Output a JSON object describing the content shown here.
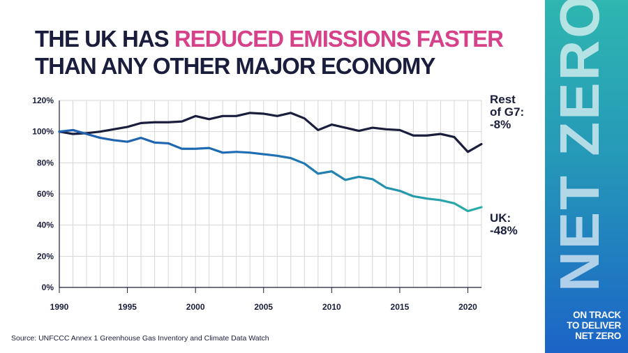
{
  "title": {
    "part1": "THE UK HAS ",
    "highlight": "REDUCED EMISSIONS FASTER",
    "line2": "THAN ANY OTHER MAJOR ECONOMY"
  },
  "source": "Source: UNFCCC Annex 1 Greenhouse Gas Inventory and Climate Data Watch",
  "sidebar": {
    "word": "NET ZERO",
    "tag_lines": [
      "ON TRACK",
      "TO DELIVER",
      "NET ZERO"
    ]
  },
  "colors": {
    "title": "#1a1d3b",
    "highlight": "#d6418a",
    "rest_g7": "#1a1d3b",
    "uk": "#2a9fa5",
    "uk_early": "#1f5fb0",
    "grid": "#d6d6d6",
    "sidebar_top": "#2fb6b0",
    "sidebar_bottom": "#1c64c7"
  },
  "chart_data": {
    "type": "line",
    "title": "",
    "xlabel": "",
    "ylabel": "",
    "xlim": [
      1990,
      2021
    ],
    "ylim": [
      0,
      120
    ],
    "x_ticks": [
      "1990",
      "1995",
      "2000",
      "2005",
      "2010",
      "2015",
      "2020"
    ],
    "y_ticks": [
      "0%",
      "20%",
      "40%",
      "60%",
      "80%",
      "100%",
      "120%"
    ],
    "grid": true,
    "x": [
      1990,
      1991,
      1992,
      1993,
      1994,
      1995,
      1996,
      1997,
      1998,
      1999,
      2000,
      2001,
      2002,
      2003,
      2004,
      2005,
      2006,
      2007,
      2008,
      2009,
      2010,
      2011,
      2012,
      2013,
      2014,
      2015,
      2016,
      2017,
      2018,
      2019,
      2020,
      2021
    ],
    "series": [
      {
        "name": "Rest of G7",
        "end_label": [
          "Rest",
          "of G7:",
          "-8%"
        ],
        "values": [
          100,
          98.5,
          99,
          100,
          101.5,
          103,
          105.5,
          106,
          106,
          106.5,
          110,
          108,
          110,
          110,
          112,
          111.5,
          110,
          112,
          108.5,
          101,
          104.5,
          102.5,
          100.5,
          102.5,
          101.5,
          101,
          97.5,
          97.5,
          98.5,
          96.5,
          87,
          92
        ]
      },
      {
        "name": "UK",
        "end_label": [
          "UK:",
          "-48%"
        ],
        "values": [
          100,
          101,
          98.5,
          96,
          94.5,
          93.5,
          96,
          93,
          92.5,
          89,
          89,
          89.5,
          86.5,
          87,
          86.5,
          85.5,
          84.5,
          83,
          79.5,
          73,
          74.5,
          69,
          71,
          69.5,
          64,
          62,
          58.5,
          57,
          56,
          54,
          49,
          51.5
        ]
      }
    ]
  }
}
